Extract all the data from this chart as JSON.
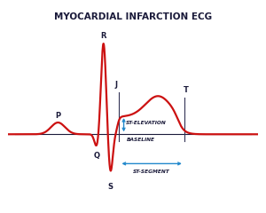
{
  "title": "MYOCARDIAL INFARCTION ECG",
  "title_fontsize": 7.5,
  "title_fontweight": "bold",
  "bg_color": "#ffffff",
  "ecg_color": "#cc1111",
  "ecg_linewidth": 1.6,
  "baseline_color": "#1a1a3a",
  "baseline_linewidth": 0.8,
  "annotation_color": "#2288cc",
  "vline_color": "#333355",
  "label_color": "#1a1a3a",
  "point_label_fontsize": 6,
  "annot_fontsize": 4.2,
  "baseline_y": 0.0,
  "st_elevation": 0.3,
  "xlim": [
    0.0,
    10.0
  ],
  "ylim": [
    -1.05,
    1.85
  ]
}
